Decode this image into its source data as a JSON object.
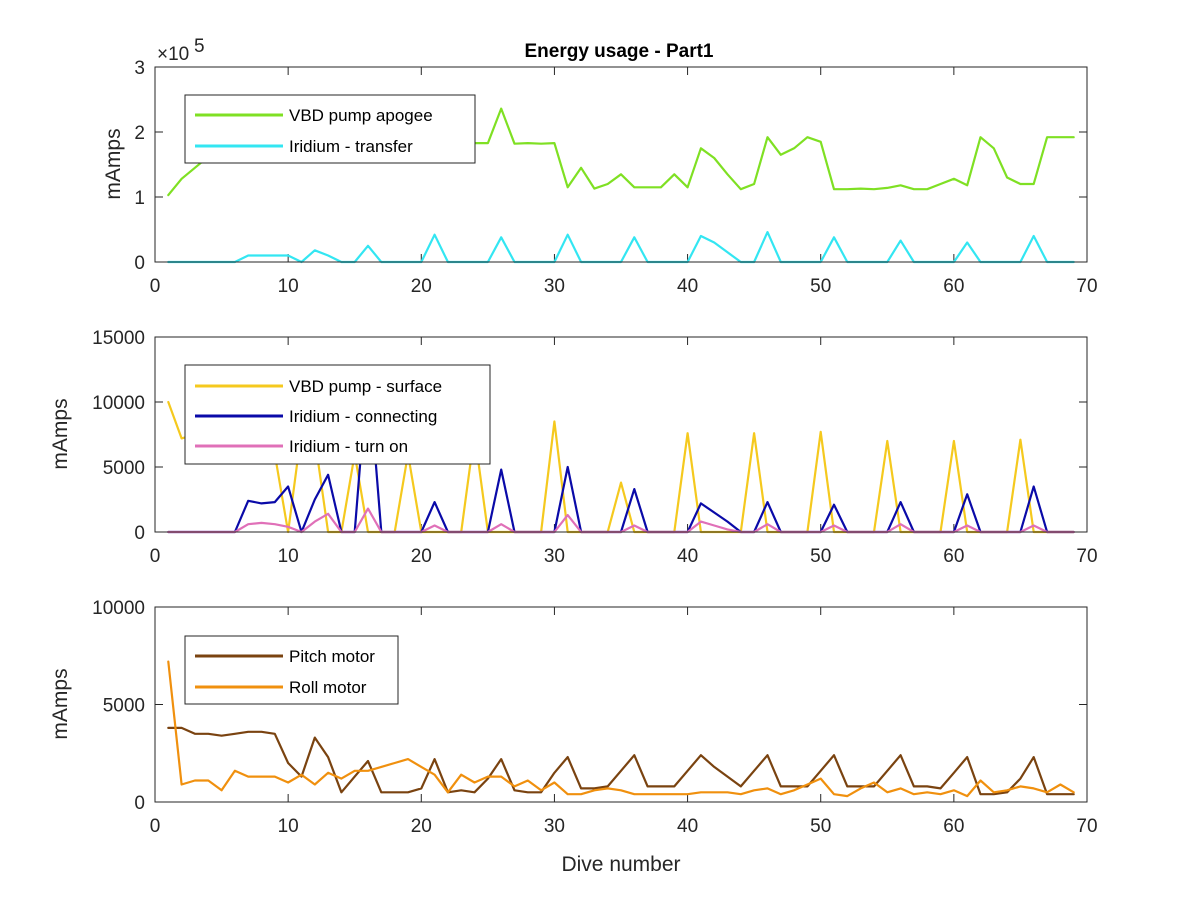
{
  "chart_data": [
    {
      "type": "line",
      "title": "Energy usage - Part1",
      "ylabel": "mAmps",
      "y_exponent_label": "×10",
      "y_exponent_power": "5",
      "xlim": [
        0,
        70
      ],
      "ylim": [
        0,
        3
      ],
      "xticks": [
        "0",
        "10",
        "20",
        "30",
        "40",
        "50",
        "60",
        "70"
      ],
      "yticks": [
        "0",
        "1",
        "2",
        "3"
      ],
      "legend_position": "top-left",
      "series": [
        {
          "name": "VBD pump apogee",
          "color": "#7fe023",
          "x": [
            1,
            2,
            3,
            4,
            5,
            6,
            7,
            8,
            9,
            10,
            11,
            12,
            13,
            14,
            15,
            16,
            17,
            18,
            19,
            20,
            21,
            22,
            23,
            24,
            25,
            26,
            27,
            28,
            29,
            30,
            31,
            32,
            33,
            34,
            35,
            36,
            37,
            38,
            39,
            40,
            41,
            42,
            43,
            44,
            45,
            46,
            47,
            48,
            49,
            50,
            51,
            52,
            53,
            54,
            55,
            56,
            57,
            58,
            59,
            60,
            61,
            62,
            63,
            64,
            65,
            66,
            67,
            68,
            69
          ],
          "values": [
            1.03,
            1.28,
            1.45,
            1.62,
            1.75,
            1.85,
            1.9,
            1.92,
            1.93,
            1.9,
            1.85,
            1.85,
            1.85,
            1.85,
            1.85,
            1.85,
            1.85,
            1.85,
            1.85,
            1.85,
            1.85,
            1.85,
            1.85,
            1.83,
            1.83,
            2.36,
            1.82,
            1.83,
            1.82,
            1.83,
            1.15,
            1.45,
            1.13,
            1.2,
            1.35,
            1.15,
            1.15,
            1.15,
            1.35,
            1.15,
            1.75,
            1.6,
            1.35,
            1.12,
            1.2,
            1.92,
            1.65,
            1.75,
            1.92,
            1.85,
            1.12,
            1.12,
            1.13,
            1.12,
            1.14,
            1.18,
            1.12,
            1.12,
            1.2,
            1.28,
            1.18,
            1.92,
            1.75,
            1.3,
            1.2,
            1.2,
            1.92,
            1.92,
            1.92
          ]
        },
        {
          "name": "Iridium - transfer",
          "color": "#33e6f2",
          "x": [
            1,
            2,
            3,
            4,
            5,
            6,
            7,
            8,
            9,
            10,
            11,
            12,
            13,
            14,
            15,
            16,
            17,
            18,
            19,
            20,
            21,
            22,
            23,
            24,
            25,
            26,
            27,
            28,
            29,
            30,
            31,
            32,
            33,
            34,
            35,
            36,
            37,
            38,
            39,
            40,
            41,
            42,
            43,
            44,
            45,
            46,
            47,
            48,
            49,
            50,
            51,
            52,
            53,
            54,
            55,
            56,
            57,
            58,
            59,
            60,
            61,
            62,
            63,
            64,
            65,
            66,
            67,
            68,
            69
          ],
          "values": [
            0,
            0,
            0,
            0,
            0,
            0,
            0.1,
            0.1,
            0.1,
            0.1,
            0,
            0.18,
            0.1,
            0,
            0,
            0.25,
            0,
            0,
            0,
            0,
            0.42,
            0,
            0,
            0,
            0,
            0.38,
            0,
            0,
            0,
            0,
            0.42,
            0,
            0,
            0,
            0,
            0.38,
            0,
            0,
            0,
            0,
            0.4,
            0.3,
            0.15,
            0,
            0,
            0.46,
            0,
            0,
            0,
            0,
            0.38,
            0,
            0,
            0,
            0,
            0.33,
            0,
            0,
            0,
            0,
            0.3,
            0,
            0,
            0,
            0,
            0.4,
            0,
            0,
            0
          ]
        }
      ]
    },
    {
      "type": "line",
      "ylabel": "mAmps",
      "xlim": [
        0,
        70
      ],
      "ylim": [
        0,
        15000
      ],
      "xticks": [
        "0",
        "10",
        "20",
        "30",
        "40",
        "50",
        "60",
        "70"
      ],
      "yticks": [
        "0",
        "5000",
        "10000",
        "15000"
      ],
      "legend_position": "top-left",
      "series": [
        {
          "name": "VBD pump - surface",
          "color": "#f5c91e",
          "x": [
            1,
            2,
            3,
            4,
            5,
            6,
            7,
            8,
            9,
            10,
            11,
            12,
            13,
            14,
            15,
            16,
            17,
            18,
            19,
            20,
            21,
            22,
            23,
            24,
            25,
            26,
            27,
            28,
            29,
            30,
            31,
            32,
            33,
            34,
            35,
            36,
            37,
            38,
            39,
            40,
            41,
            42,
            43,
            44,
            45,
            46,
            47,
            48,
            49,
            50,
            51,
            52,
            53,
            54,
            55,
            56,
            57,
            58,
            59,
            60,
            61,
            62,
            63,
            64,
            65,
            66,
            67,
            68,
            69
          ],
          "values": [
            10000,
            7200,
            7500,
            7800,
            7300,
            7500,
            7600,
            7800,
            6000,
            0,
            7800,
            7200,
            0,
            0,
            6000,
            0,
            0,
            0,
            6000,
            0,
            0,
            0,
            0,
            7600,
            0,
            0,
            0,
            0,
            0,
            8500,
            0,
            0,
            0,
            0,
            3800,
            0,
            0,
            0,
            0,
            7600,
            0,
            0,
            0,
            0,
            7600,
            0,
            0,
            0,
            0,
            7700,
            0,
            0,
            0,
            0,
            7000,
            0,
            0,
            0,
            0,
            7000,
            0,
            0,
            0,
            0,
            7100,
            0,
            0,
            0,
            0
          ]
        },
        {
          "name": "Iridium - connecting",
          "color": "#0a0aa8",
          "x": [
            1,
            2,
            3,
            4,
            5,
            6,
            7,
            8,
            9,
            10,
            11,
            12,
            13,
            14,
            15,
            16,
            17,
            18,
            19,
            20,
            21,
            22,
            23,
            24,
            25,
            26,
            27,
            28,
            29,
            30,
            31,
            32,
            33,
            34,
            35,
            36,
            37,
            38,
            39,
            40,
            41,
            42,
            43,
            44,
            45,
            46,
            47,
            48,
            49,
            50,
            51,
            52,
            53,
            54,
            55,
            56,
            57,
            58,
            59,
            60,
            61,
            62,
            63,
            64,
            65,
            66,
            67,
            68,
            69
          ],
          "values": [
            0,
            0,
            0,
            0,
            0,
            0,
            2400,
            2200,
            2300,
            3500,
            0,
            2500,
            4400,
            0,
            0,
            12800,
            0,
            0,
            0,
            0,
            2300,
            0,
            0,
            0,
            0,
            4800,
            0,
            0,
            0,
            0,
            5000,
            0,
            0,
            0,
            0,
            3300,
            0,
            0,
            0,
            0,
            2200,
            1500,
            800,
            0,
            0,
            2300,
            0,
            0,
            0,
            0,
            2100,
            0,
            0,
            0,
            0,
            2300,
            0,
            0,
            0,
            0,
            2900,
            0,
            0,
            0,
            0,
            3500,
            0,
            0,
            0
          ]
        },
        {
          "name": "Iridium - turn on",
          "color": "#e070b8",
          "x": [
            1,
            2,
            3,
            4,
            5,
            6,
            7,
            8,
            9,
            10,
            11,
            12,
            13,
            14,
            15,
            16,
            17,
            18,
            19,
            20,
            21,
            22,
            23,
            24,
            25,
            26,
            27,
            28,
            29,
            30,
            31,
            32,
            33,
            34,
            35,
            36,
            37,
            38,
            39,
            40,
            41,
            42,
            43,
            44,
            45,
            46,
            47,
            48,
            49,
            50,
            51,
            52,
            53,
            54,
            55,
            56,
            57,
            58,
            59,
            60,
            61,
            62,
            63,
            64,
            65,
            66,
            67,
            68,
            69
          ],
          "values": [
            0,
            0,
            0,
            0,
            0,
            0,
            600,
            700,
            600,
            400,
            0,
            800,
            1400,
            0,
            0,
            1800,
            0,
            0,
            0,
            0,
            500,
            0,
            0,
            0,
            0,
            600,
            0,
            0,
            0,
            0,
            1300,
            0,
            0,
            0,
            0,
            500,
            0,
            0,
            0,
            0,
            800,
            500,
            200,
            0,
            0,
            600,
            0,
            0,
            0,
            0,
            500,
            0,
            0,
            0,
            0,
            600,
            0,
            0,
            0,
            0,
            500,
            0,
            0,
            0,
            0,
            500,
            0,
            0,
            0
          ]
        }
      ]
    },
    {
      "type": "line",
      "ylabel": "mAmps",
      "xlabel": "Dive number",
      "xlim": [
        0,
        70
      ],
      "ylim": [
        0,
        10000
      ],
      "xticks": [
        "0",
        "10",
        "20",
        "30",
        "40",
        "50",
        "60",
        "70"
      ],
      "yticks": [
        "0",
        "5000",
        "10000"
      ],
      "legend_position": "top-left",
      "series": [
        {
          "name": "Pitch motor",
          "color": "#7a4310",
          "x": [
            1,
            2,
            3,
            4,
            5,
            6,
            7,
            8,
            9,
            10,
            11,
            12,
            13,
            14,
            15,
            16,
            17,
            18,
            19,
            20,
            21,
            22,
            23,
            24,
            25,
            26,
            27,
            28,
            29,
            30,
            31,
            32,
            33,
            34,
            35,
            36,
            37,
            38,
            39,
            40,
            41,
            42,
            43,
            44,
            45,
            46,
            47,
            48,
            49,
            50,
            51,
            52,
            53,
            54,
            55,
            56,
            57,
            58,
            59,
            60,
            61,
            62,
            63,
            64,
            65,
            66,
            67,
            68,
            69
          ],
          "values": [
            3800,
            3800,
            3500,
            3500,
            3400,
            3500,
            3600,
            3600,
            3500,
            2000,
            1300,
            3300,
            2300,
            500,
            1300,
            2100,
            500,
            500,
            500,
            700,
            2200,
            500,
            600,
            500,
            1200,
            2200,
            600,
            500,
            500,
            1500,
            2300,
            700,
            700,
            800,
            1600,
            2400,
            800,
            800,
            800,
            1600,
            2400,
            1800,
            1300,
            800,
            1600,
            2400,
            800,
            800,
            800,
            1600,
            2400,
            800,
            800,
            800,
            1600,
            2400,
            800,
            800,
            700,
            1500,
            2300,
            400,
            400,
            500,
            1200,
            2300,
            400,
            400,
            400
          ]
        },
        {
          "name": "Roll motor",
          "color": "#f0900e",
          "x": [
            1,
            2,
            3,
            4,
            5,
            6,
            7,
            8,
            9,
            10,
            11,
            12,
            13,
            14,
            15,
            16,
            17,
            18,
            19,
            20,
            21,
            22,
            23,
            24,
            25,
            26,
            27,
            28,
            29,
            30,
            31,
            32,
            33,
            34,
            35,
            36,
            37,
            38,
            39,
            40,
            41,
            42,
            43,
            44,
            45,
            46,
            47,
            48,
            49,
            50,
            51,
            52,
            53,
            54,
            55,
            56,
            57,
            58,
            59,
            60,
            61,
            62,
            63,
            64,
            65,
            66,
            67,
            68,
            69
          ],
          "values": [
            7200,
            900,
            1100,
            1100,
            600,
            1600,
            1300,
            1300,
            1300,
            1000,
            1400,
            900,
            1500,
            1200,
            1600,
            1600,
            1800,
            2000,
            2200,
            1800,
            1400,
            500,
            1400,
            1000,
            1300,
            1300,
            800,
            1100,
            600,
            1000,
            400,
            400,
            600,
            700,
            600,
            400,
            400,
            400,
            400,
            400,
            500,
            500,
            500,
            400,
            600,
            700,
            400,
            600,
            900,
            1200,
            400,
            300,
            700,
            1000,
            500,
            700,
            400,
            500,
            400,
            600,
            300,
            1100,
            500,
            600,
            800,
            700,
            500,
            900,
            500
          ]
        }
      ]
    }
  ]
}
